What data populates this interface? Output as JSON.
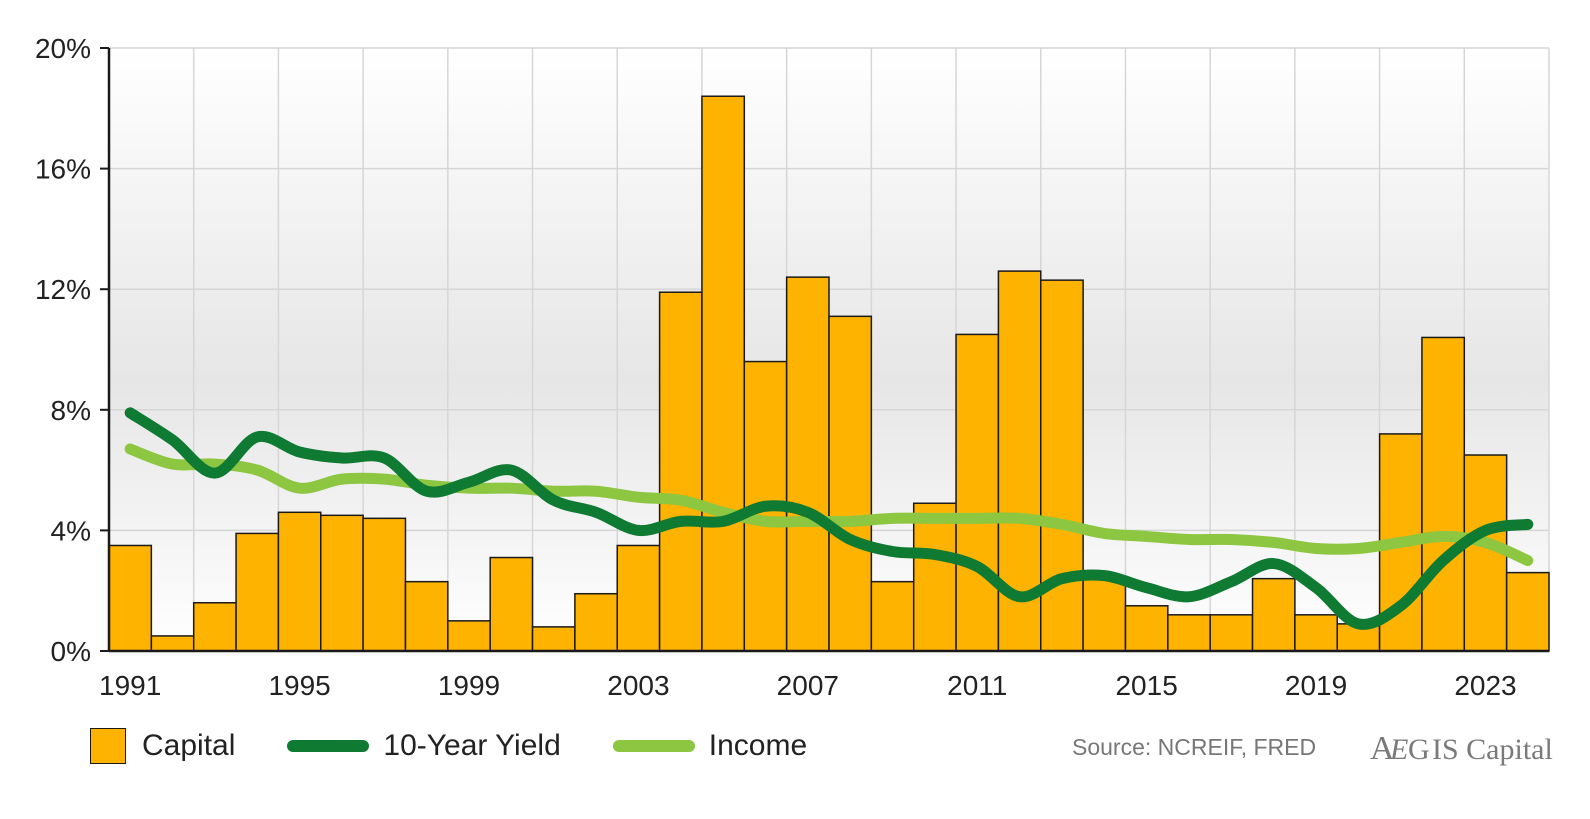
{
  "chart_data": {
    "type": "bar",
    "years": [
      1991,
      1992,
      1993,
      1994,
      1995,
      1996,
      1997,
      1998,
      1999,
      2000,
      2001,
      2002,
      2003,
      2004,
      2005,
      2006,
      2007,
      2008,
      2009,
      2010,
      2011,
      2012,
      2013,
      2014,
      2015,
      2016,
      2017,
      2018,
      2019,
      2020,
      2021,
      2022,
      2023,
      2024
    ],
    "x_tick_labels": [
      "1991",
      "1995",
      "1999",
      "2003",
      "2007",
      "2011",
      "2015",
      "2019",
      "2023"
    ],
    "y_tick_labels": [
      "0%",
      "4%",
      "8%",
      "12%",
      "16%",
      "20%"
    ],
    "ylim": [
      0,
      20
    ],
    "grid": true,
    "legend_position": "bottom",
    "series": [
      {
        "name": "Capital",
        "type": "bar",
        "color": "#FDB300",
        "values": [
          3.5,
          0.5,
          1.6,
          3.9,
          4.6,
          4.5,
          4.4,
          2.3,
          1.0,
          3.1,
          0.8,
          1.9,
          3.5,
          11.9,
          18.4,
          9.6,
          12.4,
          11.1,
          2.3,
          4.9,
          10.5,
          12.6,
          12.3,
          2.4,
          1.5,
          1.2,
          1.2,
          2.4,
          1.2,
          0.9,
          7.2,
          10.4,
          6.5,
          2.6
        ]
      },
      {
        "name": "10-Year Yield",
        "type": "line",
        "color": "#0E7A32",
        "values": [
          7.9,
          7.0,
          5.9,
          7.1,
          6.6,
          6.4,
          6.4,
          5.3,
          5.6,
          6.0,
          5.0,
          4.6,
          4.0,
          4.3,
          4.3,
          4.8,
          4.6,
          3.7,
          3.3,
          3.2,
          2.8,
          1.8,
          2.4,
          2.5,
          2.1,
          1.8,
          2.3,
          2.9,
          2.1,
          0.9,
          1.5,
          3.0,
          4.0,
          4.2
        ]
      },
      {
        "name": "Income",
        "type": "line",
        "color": "#8DC641",
        "values": [
          6.7,
          6.2,
          6.2,
          6.0,
          5.4,
          5.7,
          5.7,
          5.5,
          5.4,
          5.4,
          5.3,
          5.3,
          5.1,
          5.0,
          4.6,
          4.3,
          4.3,
          4.3,
          4.4,
          4.4,
          4.4,
          4.4,
          4.2,
          3.9,
          3.8,
          3.7,
          3.7,
          3.6,
          3.4,
          3.4,
          3.6,
          3.8,
          3.6,
          3.0
        ]
      }
    ]
  },
  "legend": {
    "capital_label": "Capital",
    "yield_label": "10-Year Yield",
    "income_label": "Income"
  },
  "footer": {
    "source": "Source: NCREIF, FRED",
    "logo_text": "AEGIS Capital"
  }
}
